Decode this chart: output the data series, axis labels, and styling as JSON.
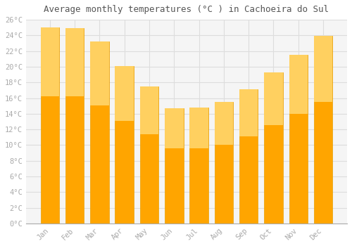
{
  "title": "Average monthly temperatures (°C ) in Cachoeira do Sul",
  "months": [
    "Jan",
    "Feb",
    "Mar",
    "Apr",
    "May",
    "Jun",
    "Jul",
    "Aug",
    "Sep",
    "Oct",
    "Nov",
    "Dec"
  ],
  "values": [
    25.0,
    24.9,
    23.2,
    20.1,
    17.5,
    14.7,
    14.8,
    15.5,
    17.1,
    19.3,
    21.5,
    23.9
  ],
  "bar_color_top": "#FFB300",
  "bar_color_bottom": "#FFA500",
  "bar_edge_color": "#E8A000",
  "background_color": "#FFFFFF",
  "plot_bg_color": "#F5F5F5",
  "grid_color": "#DDDDDD",
  "title_fontsize": 9,
  "tick_label_color": "#AAAAAA",
  "title_color": "#555555",
  "ylim": [
    0,
    26
  ],
  "ytick_step": 2,
  "figsize": [
    5.0,
    3.5
  ],
  "dpi": 100
}
